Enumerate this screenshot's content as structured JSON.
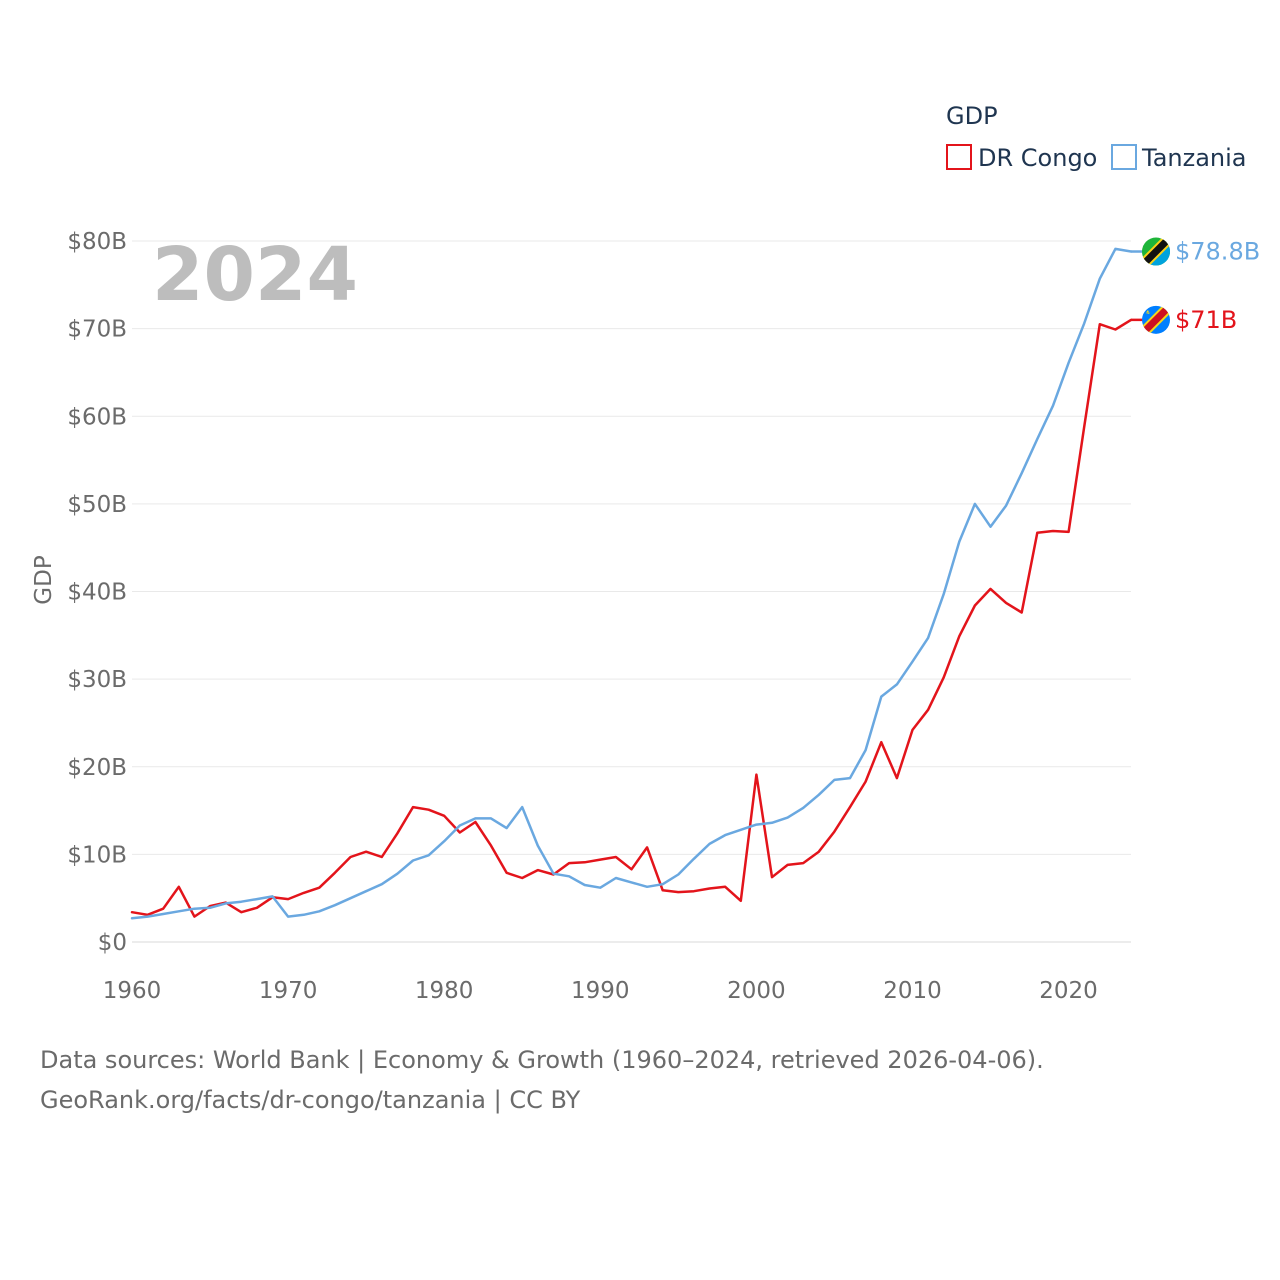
{
  "chart_data": {
    "type": "line",
    "legend_title": "GDP",
    "legend_position": "top-right",
    "year_label": "2024",
    "ylabel": "GDP",
    "xlim": [
      1960,
      2024
    ],
    "ylim": [
      0,
      80
    ],
    "y_unit": "billion USD",
    "x_ticks": [
      1960,
      1970,
      1980,
      1990,
      2000,
      2010,
      2020
    ],
    "y_ticks": [
      0,
      10,
      20,
      30,
      40,
      50,
      60,
      70,
      80
    ],
    "y_tick_labels": [
      "$0",
      "$10B",
      "$20B",
      "$30B",
      "$40B",
      "$50B",
      "$60B",
      "$70B",
      "$80B"
    ],
    "grid": true,
    "series": [
      {
        "name": "DR Congo",
        "color": "#e3141b",
        "end_label": "$71B",
        "flag_icon": "dr-congo-flag-icon",
        "x": [
          1960,
          1961,
          1962,
          1963,
          1964,
          1965,
          1966,
          1967,
          1968,
          1969,
          1970,
          1971,
          1972,
          1973,
          1974,
          1975,
          1976,
          1977,
          1978,
          1979,
          1980,
          1981,
          1982,
          1983,
          1984,
          1985,
          1986,
          1987,
          1988,
          1989,
          1990,
          1991,
          1992,
          1993,
          1994,
          1995,
          1996,
          1997,
          1998,
          1999,
          2000,
          2001,
          2002,
          2003,
          2004,
          2005,
          2006,
          2007,
          2008,
          2009,
          2010,
          2011,
          2012,
          2013,
          2014,
          2015,
          2016,
          2017,
          2018,
          2019,
          2020,
          2021,
          2022,
          2023,
          2024
        ],
        "values": [
          3.4,
          3.1,
          3.8,
          6.3,
          2.9,
          4.1,
          4.5,
          3.4,
          3.9,
          5.1,
          4.9,
          5.6,
          6.2,
          7.9,
          9.7,
          10.3,
          9.7,
          12.4,
          15.4,
          15.1,
          14.4,
          12.5,
          13.7,
          11.0,
          7.9,
          7.3,
          8.2,
          7.7,
          9.0,
          9.1,
          9.4,
          9.7,
          8.3,
          10.8,
          5.9,
          5.7,
          5.8,
          6.1,
          6.3,
          4.7,
          19.1,
          7.4,
          8.8,
          9.0,
          10.3,
          12.6,
          15.4,
          18.3,
          22.8,
          18.7,
          24.2,
          26.5,
          30.2,
          34.9,
          38.4,
          40.3,
          38.7,
          37.6,
          46.7,
          46.9,
          46.8,
          58.8,
          70.5,
          69.9,
          71.0
        ]
      },
      {
        "name": "Tanzania",
        "color": "#6aa8e0",
        "end_label": "$78.8B",
        "flag_icon": "tanzania-flag-icon",
        "x": [
          1960,
          1961,
          1962,
          1963,
          1964,
          1965,
          1966,
          1967,
          1968,
          1969,
          1970,
          1971,
          1972,
          1973,
          1974,
          1975,
          1976,
          1977,
          1978,
          1979,
          1980,
          1981,
          1982,
          1983,
          1984,
          1985,
          1986,
          1987,
          1988,
          1989,
          1990,
          1991,
          1992,
          1993,
          1994,
          1995,
          1996,
          1997,
          1998,
          1999,
          2000,
          2001,
          2002,
          2003,
          2004,
          2005,
          2006,
          2007,
          2008,
          2009,
          2010,
          2011,
          2012,
          2013,
          2014,
          2015,
          2016,
          2017,
          2018,
          2019,
          2020,
          2021,
          2022,
          2023,
          2024
        ],
        "values": [
          2.7,
          2.9,
          3.2,
          3.5,
          3.8,
          3.9,
          4.4,
          4.6,
          4.9,
          5.2,
          2.9,
          3.1,
          3.5,
          4.2,
          5.0,
          5.8,
          6.6,
          7.8,
          9.3,
          9.9,
          11.5,
          13.3,
          14.1,
          14.1,
          13.0,
          15.4,
          11.0,
          7.8,
          7.5,
          6.5,
          6.2,
          7.3,
          6.8,
          6.3,
          6.6,
          7.7,
          9.5,
          11.2,
          12.2,
          12.8,
          13.4,
          13.6,
          14.2,
          15.3,
          16.8,
          18.5,
          18.7,
          21.9,
          28.0,
          29.4,
          32.0,
          34.7,
          39.7,
          45.7,
          50.0,
          47.4,
          49.8,
          53.5,
          57.4,
          61.2,
          66.1,
          70.6,
          75.7,
          79.1,
          78.8
        ]
      }
    ]
  },
  "footer": {
    "source_line": "Data sources: World Bank | Economy & Growth (1960–2024, retrieved 2026-04-06).",
    "url_line": "GeoRank.org/facts/dr-congo/tanzania | CC BY"
  }
}
